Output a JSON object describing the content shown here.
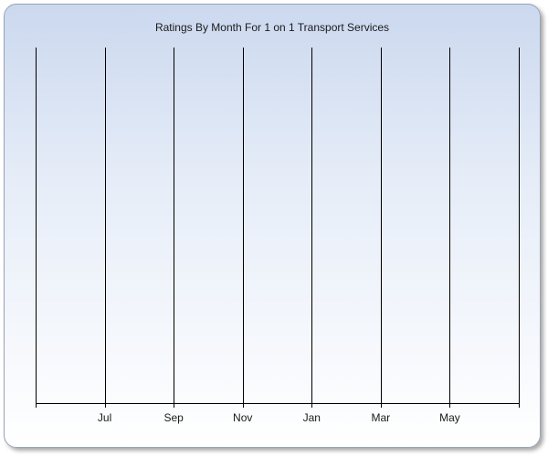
{
  "chart_data": {
    "type": "line",
    "title": "Ratings By Month For 1 on 1 Transport Services",
    "xlabel": "",
    "ylabel": "",
    "x_tick_labels": [
      "Jul",
      "Sep",
      "Nov",
      "Jan",
      "Mar",
      "May"
    ],
    "series": [],
    "grid": "vertical",
    "legend": "none"
  }
}
